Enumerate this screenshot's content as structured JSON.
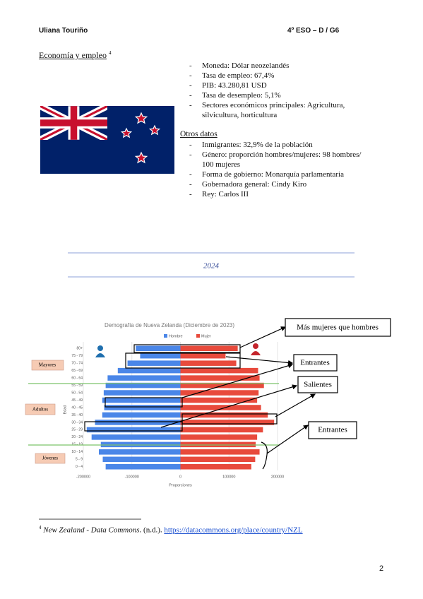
{
  "header": {
    "name": "Uliana Touriño",
    "course": "4º ESO – D / G6"
  },
  "economy": {
    "heading": "Economía y empleo",
    "footnote_ref": "4",
    "items": [
      "Moneda: Dólar neozelandés",
      "Tasa de empleo: 67,4%",
      "PIB: 43.280,81 USD",
      "Tasa de desempleo: 5,1%",
      "Sectores económicos principales: Agricultura, silvicultura, horticultura"
    ]
  },
  "other": {
    "heading": "Otros datos",
    "items": [
      "Inmigrantes: 32,9% de la población",
      "Género: proporción hombres/mujeres: 98 hombres/ 100 mujeres",
      "Forma de gobierno: Monarquía parlamentaria",
      "Gobernadora general: Cindy Kiro",
      "Rey: Carlos III"
    ]
  },
  "divider": {
    "year": "2024"
  },
  "chart_data": {
    "type": "bar",
    "orientation": "horizontal",
    "title": "Demografía de Nueva Zelanda (Diciembre de 2023)",
    "x_label": "Proporciones",
    "y_label": "Edad",
    "categories": [
      "0 - 4",
      "5 - 9",
      "10 - 14",
      "15 - 19",
      "20 - 24",
      "25 - 29",
      "30 - 34",
      "35 - 40",
      "40 - 45",
      "45 - 49",
      "50 - 54",
      "55 - 59",
      "60 - 64",
      "65 - 69",
      "70 - 74",
      "75 - 79",
      "80+"
    ],
    "series": [
      {
        "name": "Hombre",
        "color": "#4a86e8",
        "values": [
          -154000,
          -160000,
          -168000,
          -164000,
          -183000,
          -193000,
          -176000,
          -161000,
          -157000,
          -161000,
          -158000,
          -154000,
          -150000,
          -129000,
          -109000,
          -83000,
          -92000
        ]
      },
      {
        "name": "Mujer",
        "color": "#e84a3c",
        "values": [
          146000,
          154000,
          163000,
          155000,
          158000,
          170000,
          193000,
          180000,
          166000,
          158000,
          161000,
          172000,
          163000,
          160000,
          115000,
          93000,
          118000
        ]
      }
    ],
    "xlim": [
      -200000,
      200000
    ],
    "xticks": [
      -200000,
      -100000,
      0,
      100000,
      200000
    ],
    "grid": true,
    "legend": "top",
    "annotations": [
      "Más mujeres que hombres",
      "Entrantes",
      "Salientes",
      "Entrantes"
    ],
    "groups": [
      "Mayores",
      "Adultos",
      "Jóvenes"
    ]
  },
  "footnote": {
    "marker": "4",
    "source": "New Zealand - Data Commons.",
    "date": "(n.d.).",
    "url": "https://datacommons.org/place/country/NZL"
  },
  "page_number": "2"
}
